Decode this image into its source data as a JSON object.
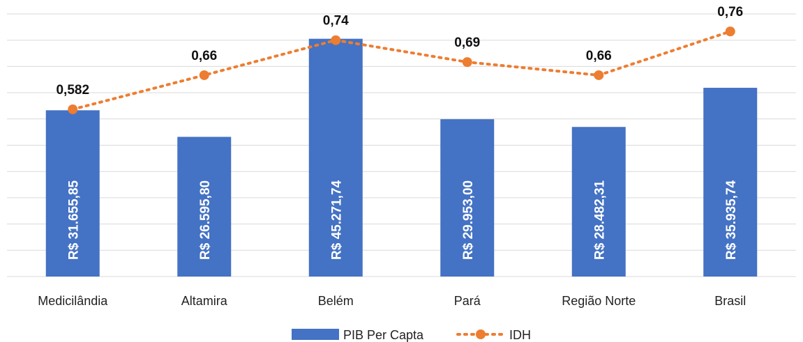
{
  "colors": {
    "bar": "#4472C4",
    "line": "#ED7D31",
    "grid": "#D9D9D9"
  },
  "chart_data": {
    "type": "bar",
    "categories": [
      "Medicilândia",
      "Altamira",
      "Belém",
      "Pará",
      "Região Norte",
      "Brasil"
    ],
    "series": [
      {
        "name": "PIB Per Capta",
        "type": "bar",
        "axis": "primary",
        "values": [
          31655.85,
          26595.8,
          45271.74,
          29953.0,
          28482.31,
          35935.74
        ],
        "labels": [
          "R$ 31.655,85",
          "R$ 26.595,80",
          "R$ 45.271,74",
          "R$ 29.953,00",
          "R$ 28.482,31",
          "R$ 35.935,74"
        ]
      },
      {
        "name": "IDH",
        "type": "line",
        "style": "dotted",
        "axis": "secondary",
        "values": [
          0.582,
          0.66,
          0.74,
          0.69,
          0.66,
          0.76
        ],
        "labels": [
          "0,582",
          "0,66",
          "0,74",
          "0,69",
          "0,66",
          "0,76"
        ]
      }
    ],
    "title": "",
    "xlabel": "",
    "ylabel": "",
    "ylim": [
      0,
      50000
    ],
    "y2lim": [
      0.2,
      0.8
    ],
    "grid": true,
    "legend": "bottom-center"
  }
}
